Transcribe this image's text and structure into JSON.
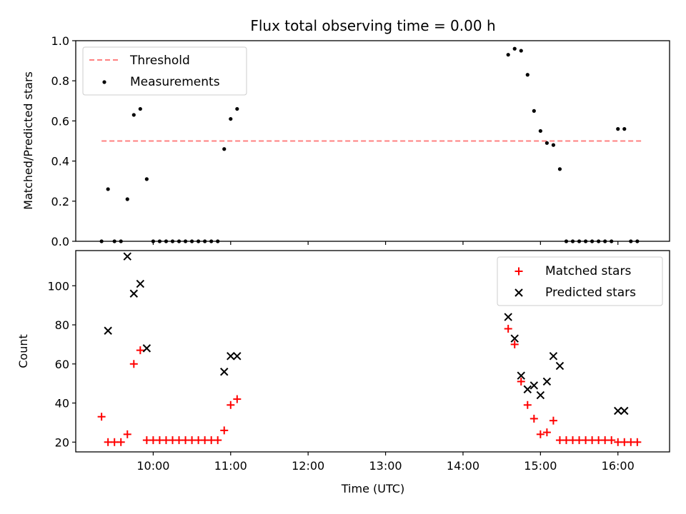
{
  "chart_data": {
    "title": "Flux total observing time = 0.00 h",
    "xlabel": "Time (UTC)",
    "x_unit": "hours UTC",
    "xlim": [
      "09:00",
      "16:40"
    ],
    "xticks": [
      "10:00",
      "11:00",
      "12:00",
      "13:00",
      "14:00",
      "15:00",
      "16:00"
    ],
    "panels": [
      {
        "type": "scatter",
        "ylabel": "Matched/Predicted stars",
        "ylim": [
          0.0,
          1.0
        ],
        "yticks": [
          "0.0",
          "0.2",
          "0.4",
          "0.6",
          "0.8",
          "1.0"
        ],
        "legend_position": "upper-left",
        "grid": false,
        "series": [
          {
            "name": "Threshold",
            "kind": "dashed-line",
            "color": "#ff8080",
            "x": [
              "09:20",
              "16:20"
            ],
            "y": [
              0.5,
              0.5
            ]
          },
          {
            "name": "Measurements",
            "kind": "dot",
            "color": "#000000",
            "x": [
              "09:20",
              "09:25",
              "09:30",
              "09:35",
              "09:40",
              "09:45",
              "09:50",
              "09:55",
              "10:00",
              "10:05",
              "10:10",
              "10:15",
              "10:20",
              "10:25",
              "10:30",
              "10:35",
              "10:40",
              "10:45",
              "10:50",
              "10:55",
              "11:00",
              "11:05",
              "14:35",
              "14:40",
              "14:45",
              "14:50",
              "14:55",
              "15:00",
              "15:05",
              "15:10",
              "15:15",
              "15:20",
              "15:25",
              "15:30",
              "15:35",
              "15:40",
              "15:45",
              "15:50",
              "15:55",
              "16:00",
              "16:05",
              "16:10",
              "16:15"
            ],
            "y": [
              0.0,
              0.26,
              0.0,
              0.0,
              0.21,
              0.63,
              0.66,
              0.31,
              0.0,
              0.0,
              0.0,
              0.0,
              0.0,
              0.0,
              0.0,
              0.0,
              0.0,
              0.0,
              0.0,
              0.46,
              0.61,
              0.66,
              0.93,
              0.96,
              0.95,
              0.83,
              0.65,
              0.55,
              0.49,
              0.48,
              0.36,
              0.0,
              0.0,
              0.0,
              0.0,
              0.0,
              0.0,
              0.0,
              0.0,
              0.56,
              0.56,
              0.0,
              0.0
            ]
          }
        ]
      },
      {
        "type": "scatter",
        "ylabel": "Count",
        "ylim": [
          15,
          118
        ],
        "yticks": [
          "20",
          "40",
          "60",
          "80",
          "100"
        ],
        "legend_position": "upper-right",
        "grid": false,
        "series": [
          {
            "name": "Matched stars",
            "kind": "plus",
            "color": "#ff0000",
            "x": [
              "09:20",
              "09:25",
              "09:30",
              "09:35",
              "09:40",
              "09:45",
              "09:50",
              "09:55",
              "10:00",
              "10:05",
              "10:10",
              "10:15",
              "10:20",
              "10:25",
              "10:30",
              "10:35",
              "10:40",
              "10:45",
              "10:50",
              "10:55",
              "11:00",
              "11:05",
              "14:35",
              "14:40",
              "14:45",
              "14:50",
              "14:55",
              "15:00",
              "15:05",
              "15:10",
              "15:15",
              "15:20",
              "15:25",
              "15:30",
              "15:35",
              "15:40",
              "15:45",
              "15:50",
              "15:55",
              "16:00",
              "16:05",
              "16:10",
              "16:15"
            ],
            "y": [
              33,
              20,
              20,
              20,
              24,
              60,
              67,
              21,
              21,
              21,
              21,
              21,
              21,
              21,
              21,
              21,
              21,
              21,
              21,
              26,
              39,
              42,
              78,
              70,
              51,
              39,
              32,
              24,
              25,
              31,
              21,
              21,
              21,
              21,
              21,
              21,
              21,
              21,
              21,
              20,
              20,
              20,
              20
            ]
          },
          {
            "name": "Predicted stars",
            "kind": "x",
            "color": "#000000",
            "x": [
              "09:25",
              "09:40",
              "09:45",
              "09:50",
              "09:55",
              "10:55",
              "11:00",
              "11:05",
              "14:35",
              "14:40",
              "14:45",
              "14:50",
              "14:55",
              "15:00",
              "15:05",
              "15:10",
              "15:15",
              "16:00",
              "16:05"
            ],
            "y": [
              77,
              115,
              96,
              101,
              68,
              56,
              64,
              64,
              84,
              73,
              54,
              47,
              49,
              44,
              51,
              64,
              59,
              36,
              36
            ]
          }
        ]
      }
    ]
  }
}
